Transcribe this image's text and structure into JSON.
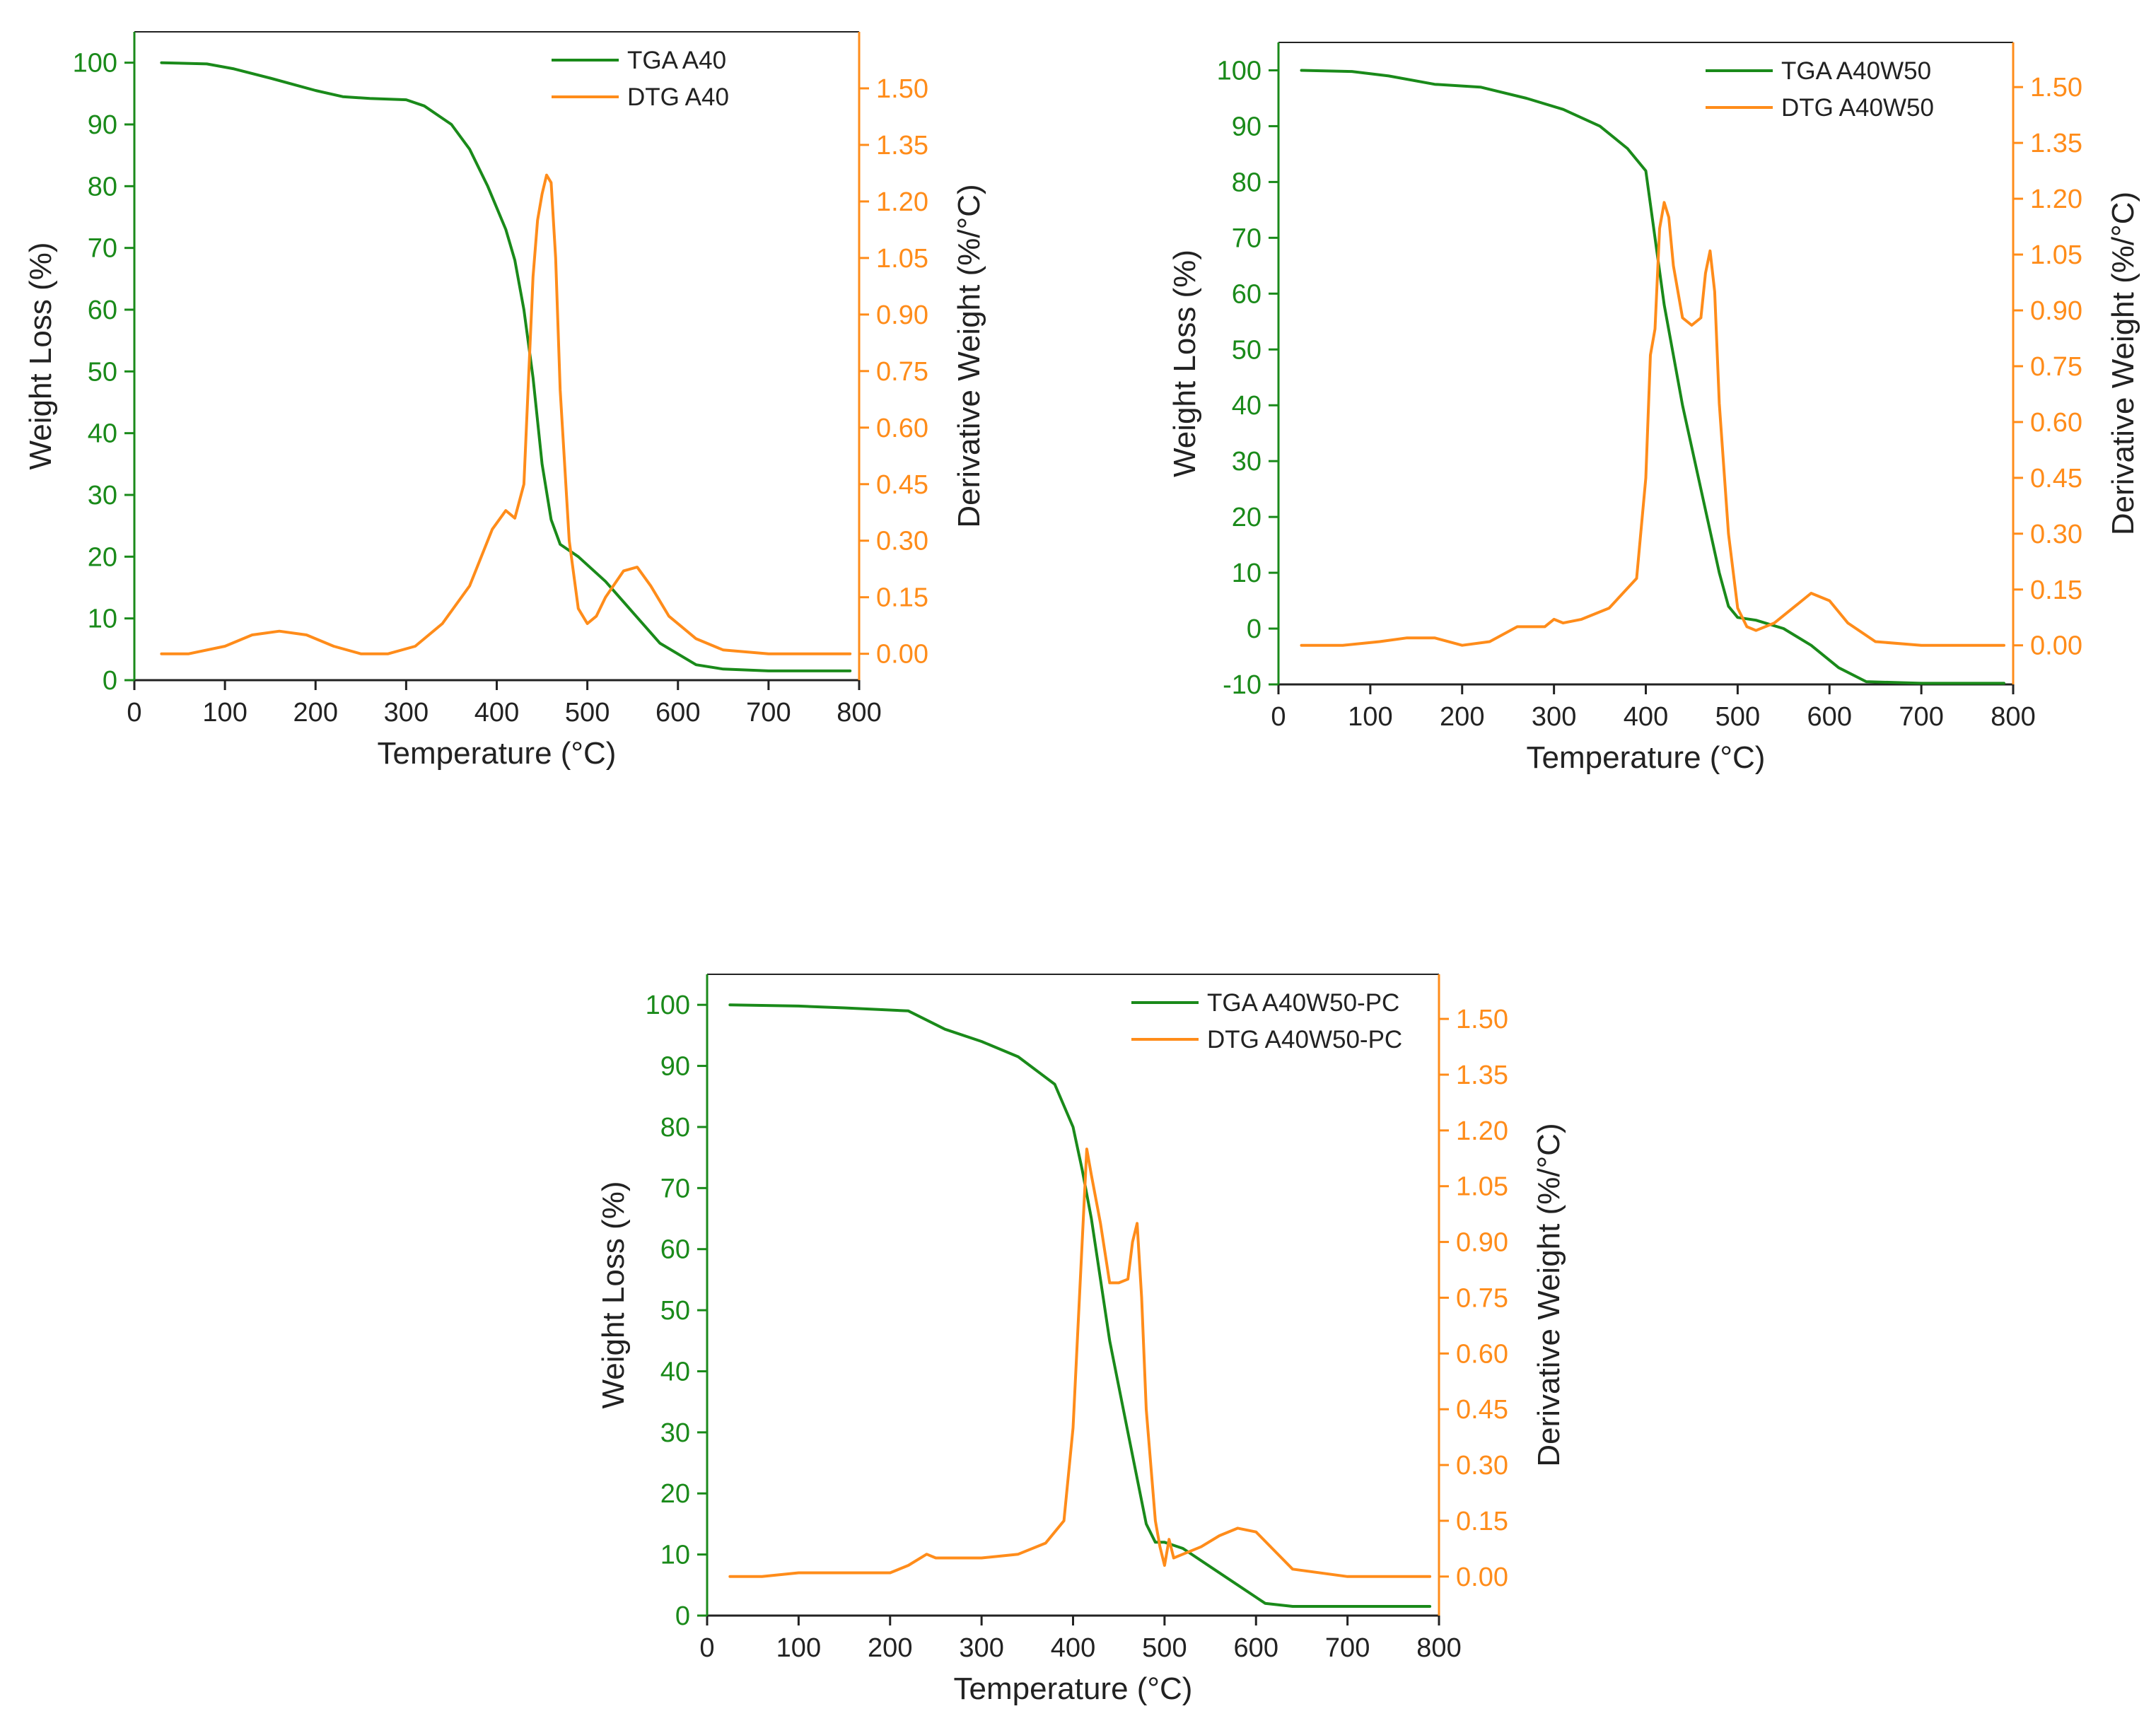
{
  "colors": {
    "tga": "#1a8a1a",
    "dtg": "#ff8c1a",
    "axis": "#222222"
  },
  "chart_data": [
    {
      "type": "line",
      "id": "A40",
      "xlabel": "Temperature (°C)",
      "ylabel": "Weight Loss (%)",
      "y2label": "Derivative Weight (%/°C)",
      "xlim": [
        0,
        800
      ],
      "ylim": [
        0,
        105
      ],
      "y2lim": [
        -0.07,
        1.65
      ],
      "xticks": [
        0,
        100,
        200,
        300,
        400,
        500,
        600,
        700,
        800
      ],
      "yticks": [
        0,
        10,
        20,
        30,
        40,
        50,
        60,
        70,
        80,
        90,
        100
      ],
      "y2ticks": [
        "0.00",
        "0.15",
        "0.30",
        "0.45",
        "0.60",
        "0.75",
        "0.90",
        "1.05",
        "1.20",
        "1.35",
        "1.50"
      ],
      "legend": [
        "TGA A40",
        "DTG A40"
      ],
      "legend_position": "top-right",
      "series": [
        {
          "name": "TGA A40",
          "axis": "left",
          "x": [
            30,
            80,
            110,
            150,
            200,
            230,
            260,
            300,
            320,
            350,
            370,
            390,
            410,
            420,
            430,
            440,
            450,
            460,
            470,
            490,
            520,
            550,
            580,
            620,
            650,
            700,
            790
          ],
          "y": [
            100,
            99.8,
            99,
            97.5,
            95.5,
            94.5,
            94.2,
            94,
            93,
            90,
            86,
            80,
            73,
            68,
            60,
            49,
            35,
            26,
            22,
            20,
            16,
            11,
            6,
            2.5,
            1.8,
            1.5,
            1.5
          ]
        },
        {
          "name": "DTG A40",
          "axis": "right",
          "x": [
            30,
            60,
            100,
            130,
            160,
            190,
            220,
            250,
            280,
            310,
            340,
            370,
            395,
            410,
            420,
            430,
            440,
            445,
            450,
            455,
            460,
            465,
            470,
            480,
            490,
            500,
            510,
            520,
            540,
            555,
            570,
            590,
            620,
            650,
            700,
            790
          ],
          "y": [
            0.0,
            0.0,
            0.02,
            0.05,
            0.06,
            0.05,
            0.02,
            0.0,
            0.0,
            0.02,
            0.08,
            0.18,
            0.33,
            0.38,
            0.36,
            0.45,
            1.0,
            1.15,
            1.22,
            1.27,
            1.25,
            1.05,
            0.7,
            0.3,
            0.12,
            0.08,
            0.1,
            0.15,
            0.22,
            0.23,
            0.18,
            0.1,
            0.04,
            0.01,
            0.0,
            0.0
          ]
        }
      ]
    },
    {
      "type": "line",
      "id": "A40W50",
      "xlabel": "Temperature (°C)",
      "ylabel": "Weight Loss (%)",
      "y2label": "Derivative Weight (%/°C)",
      "xlim": [
        0,
        800
      ],
      "ylim": [
        -10,
        105
      ],
      "y2lim": [
        -0.105,
        1.62
      ],
      "xticks": [
        0,
        100,
        200,
        300,
        400,
        500,
        600,
        700,
        800
      ],
      "yticks": [
        -10,
        0,
        10,
        20,
        30,
        40,
        50,
        60,
        70,
        80,
        90,
        100
      ],
      "y2ticks": [
        "0.00",
        "0.15",
        "0.30",
        "0.45",
        "0.60",
        "0.75",
        "0.90",
        "1.05",
        "1.20",
        "1.35",
        "1.50"
      ],
      "legend": [
        "TGA A40W50",
        "DTG A40W50"
      ],
      "legend_position": "top-right",
      "series": [
        {
          "name": "TGA A40W50",
          "axis": "left",
          "x": [
            25,
            80,
            120,
            170,
            220,
            270,
            310,
            350,
            380,
            400,
            410,
            420,
            440,
            460,
            480,
            490,
            500,
            520,
            550,
            580,
            610,
            640,
            700,
            790
          ],
          "y": [
            100,
            99.8,
            99,
            97.5,
            97,
            95,
            93,
            90,
            86,
            82,
            70,
            58,
            40,
            25,
            10,
            4,
            2,
            1.5,
            0,
            -3,
            -7,
            -9.5,
            -9.8,
            -9.8
          ]
        },
        {
          "name": "DTG A40W50",
          "axis": "right",
          "x": [
            25,
            70,
            110,
            140,
            170,
            200,
            230,
            260,
            290,
            300,
            310,
            330,
            360,
            390,
            400,
            405,
            410,
            415,
            420,
            425,
            430,
            440,
            450,
            460,
            465,
            470,
            475,
            480,
            490,
            500,
            510,
            520,
            540,
            560,
            580,
            600,
            620,
            650,
            700,
            790
          ],
          "y": [
            0.0,
            0.0,
            0.01,
            0.02,
            0.02,
            0.0,
            0.01,
            0.05,
            0.05,
            0.07,
            0.06,
            0.07,
            0.1,
            0.18,
            0.45,
            0.78,
            0.85,
            1.12,
            1.19,
            1.15,
            1.02,
            0.88,
            0.86,
            0.88,
            1.0,
            1.06,
            0.95,
            0.65,
            0.3,
            0.1,
            0.05,
            0.04,
            0.06,
            0.1,
            0.14,
            0.12,
            0.06,
            0.01,
            0.0,
            0.0
          ]
        }
      ]
    },
    {
      "type": "line",
      "id": "A40W50-PC",
      "xlabel": "Temperature (°C)",
      "ylabel": "Weight Loss (%)",
      "y2label": "Derivative Weight (%/°C)",
      "xlim": [
        0,
        800
      ],
      "ylim": [
        0,
        105
      ],
      "y2lim": [
        -0.105,
        1.62
      ],
      "xticks": [
        0,
        100,
        200,
        300,
        400,
        500,
        600,
        700,
        800
      ],
      "yticks": [
        0,
        10,
        20,
        30,
        40,
        50,
        60,
        70,
        80,
        90,
        100
      ],
      "y2ticks": [
        "0.00",
        "0.15",
        "0.30",
        "0.45",
        "0.60",
        "0.75",
        "0.90",
        "1.05",
        "1.20",
        "1.35",
        "1.50"
      ],
      "legend": [
        "TGA A40W50-PC",
        "DTG A40W50-PC"
      ],
      "legend_position": "top-right",
      "series": [
        {
          "name": "TGA A40W50-PC",
          "axis": "left",
          "x": [
            25,
            100,
            150,
            220,
            260,
            300,
            340,
            380,
            400,
            410,
            420,
            440,
            460,
            480,
            490,
            500,
            520,
            550,
            580,
            610,
            640,
            700,
            790
          ],
          "y": [
            100,
            99.8,
            99.5,
            99,
            96,
            94,
            91.5,
            87,
            80,
            73,
            65,
            45,
            30,
            15,
            12,
            12,
            11,
            8,
            5,
            2,
            1.5,
            1.5,
            1.5
          ]
        },
        {
          "name": "DTG A40W50-PC",
          "axis": "right",
          "x": [
            25,
            60,
            100,
            150,
            200,
            220,
            240,
            250,
            270,
            300,
            340,
            370,
            390,
            400,
            410,
            415,
            420,
            430,
            440,
            450,
            460,
            465,
            470,
            475,
            480,
            490,
            495,
            500,
            505,
            510,
            520,
            540,
            560,
            580,
            600,
            620,
            640,
            700,
            790
          ],
          "y": [
            0.0,
            0.0,
            0.01,
            0.01,
            0.01,
            0.03,
            0.06,
            0.05,
            0.05,
            0.05,
            0.06,
            0.09,
            0.15,
            0.4,
            0.9,
            1.15,
            1.08,
            0.95,
            0.79,
            0.79,
            0.8,
            0.9,
            0.95,
            0.75,
            0.45,
            0.15,
            0.08,
            0.03,
            0.1,
            0.05,
            0.06,
            0.08,
            0.11,
            0.13,
            0.12,
            0.07,
            0.02,
            0.0,
            0.0
          ]
        }
      ]
    }
  ]
}
